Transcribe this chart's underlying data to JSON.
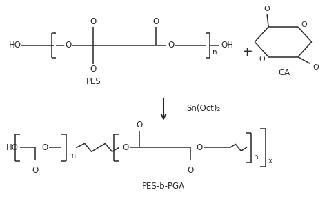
{
  "bg_color": "#ffffff",
  "line_color": "#2a2a2a",
  "text_color": "#2a2a2a",
  "font_size": 8.5,
  "catalyst": "Sn(Oct)₂",
  "label_pes": "PES",
  "label_ga": "GA",
  "label_product": "PES-b-PGA",
  "figw": 4.74,
  "figh": 2.89,
  "dpi": 100
}
